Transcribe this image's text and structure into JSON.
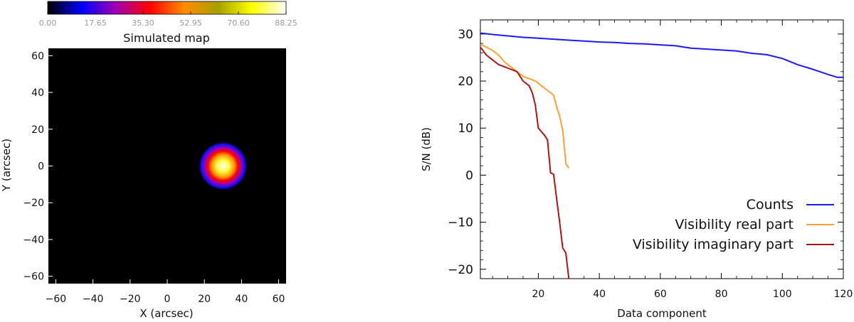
{
  "colors": {
    "counts": "#1a1aff",
    "vis_real": "#ffa033",
    "vis_imag": "#b31212"
  },
  "chart_data": [
    {
      "type": "heatmap",
      "title": "Simulated map",
      "xlabel": "X (arcsec)",
      "ylabel": "Y (arcsec)",
      "xlim": [
        -64,
        64
      ],
      "ylim": [
        -64,
        64
      ],
      "xticks": [
        -60,
        -40,
        -20,
        0,
        20,
        40,
        60
      ],
      "yticks": [
        -60,
        -40,
        -20,
        0,
        20,
        40,
        60
      ],
      "colorbar": {
        "min": 0,
        "max": 88.25,
        "ticks": [
          "0.00",
          "17.65",
          "35.30",
          "52.95",
          "70.60",
          "88.25"
        ],
        "stops": [
          "#000000",
          "#0000ff",
          "#9f00b0",
          "#ff0000",
          "#ff8c00",
          "#a5a000",
          "#ffff00",
          "#ffffff"
        ]
      },
      "source": {
        "x": 30,
        "y": 0,
        "peak": 88.25,
        "sigma_arcsec": 4.2
      }
    },
    {
      "type": "line",
      "xlabel": "Data component",
      "ylabel": "S/N (dB)",
      "xlim": [
        1,
        120
      ],
      "ylim": [
        -22,
        33
      ],
      "xticks": [
        20,
        40,
        60,
        80,
        100,
        120
      ],
      "yticks": [
        -20,
        -10,
        0,
        10,
        20,
        30
      ],
      "legend": "bottom-right",
      "series": [
        {
          "name": "Counts",
          "color": "#1a1aff",
          "x": [
            1,
            5,
            10,
            15,
            20,
            25,
            30,
            35,
            40,
            45,
            50,
            55,
            60,
            65,
            70,
            75,
            80,
            85,
            90,
            95,
            100,
            105,
            110,
            115,
            118,
            120
          ],
          "y": [
            30.2,
            29.9,
            29.6,
            29.3,
            29.1,
            28.9,
            28.7,
            28.5,
            28.3,
            28.2,
            28.0,
            27.9,
            27.7,
            27.5,
            27.0,
            26.8,
            26.6,
            26.4,
            25.9,
            25.6,
            24.8,
            23.5,
            22.5,
            21.4,
            20.8,
            20.8
          ]
        },
        {
          "name": "Visibility real part",
          "color": "#ffa033",
          "x": [
            1,
            3,
            5,
            7,
            9,
            11,
            13,
            15,
            17,
            19,
            20,
            22,
            24,
            25,
            26,
            27,
            28,
            29,
            30
          ],
          "y": [
            27.8,
            27.2,
            26.5,
            25.5,
            24.0,
            23.0,
            22.0,
            21.0,
            20.5,
            20.0,
            19.5,
            18.5,
            17.5,
            17.0,
            14.5,
            12.5,
            9.5,
            2.5,
            1.5
          ]
        },
        {
          "name": "Visibility imaginary part",
          "color": "#b31212",
          "x": [
            1,
            3,
            5,
            7,
            9,
            11,
            13,
            15,
            17,
            18,
            19,
            20,
            22,
            23,
            24,
            25,
            26,
            27,
            28,
            29,
            30
          ],
          "y": [
            27.2,
            25.5,
            24.5,
            23.5,
            23.0,
            22.5,
            22.0,
            20.0,
            19.0,
            17.5,
            15.0,
            10.0,
            8.5,
            7.5,
            0.5,
            0.2,
            -5.0,
            -10.0,
            -15.5,
            -16.5,
            -22.0
          ]
        }
      ]
    }
  ]
}
